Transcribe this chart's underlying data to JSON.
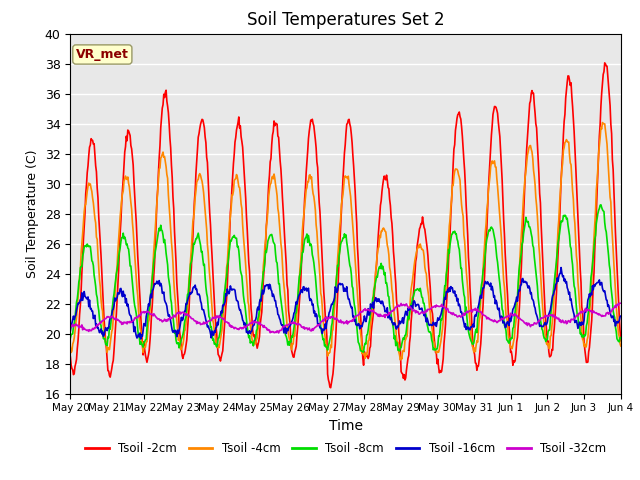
{
  "title": "Soil Temperatures Set 2",
  "xlabel": "Time",
  "ylabel": "Soil Temperature (C)",
  "ylim": [
    16,
    40
  ],
  "yticks": [
    16,
    18,
    20,
    22,
    24,
    26,
    28,
    30,
    32,
    34,
    36,
    38,
    40
  ],
  "bg_color": "#e8e8e8",
  "watermark_text": "VR_met",
  "watermark_fg": "#8b0000",
  "watermark_bg": "#ffffcc",
  "num_days": 15,
  "xtick_labels": [
    "May 20",
    "May 21",
    "May 22",
    "May 23",
    "May 24",
    "May 25",
    "May 26",
    "May 27",
    "May 28",
    "May 29",
    "May 30",
    "May 31",
    "Jun 1",
    "Jun 2",
    "Jun 3",
    "Jun 4"
  ],
  "series_colors": [
    "#ff0000",
    "#ff8800",
    "#00dd00",
    "#0000cc",
    "#cc00cc"
  ],
  "series_labels": [
    "Tsoil -2cm",
    "Tsoil -4cm",
    "Tsoil -8cm",
    "Tsoil -16cm",
    "Tsoil -32cm"
  ],
  "line_width": 1.2,
  "peak_2cm": [
    33.0,
    33.5,
    36.0,
    34.3,
    34.1,
    34.1,
    34.2,
    34.2,
    30.5,
    27.5,
    34.8,
    35.2,
    36.0,
    37.0,
    38.0
  ],
  "trough_2cm": [
    17.3,
    17.2,
    18.3,
    18.5,
    18.3,
    19.2,
    18.5,
    16.5,
    18.3,
    17.0,
    17.5,
    17.8,
    18.0,
    18.5,
    18.2
  ],
  "peak_4cm": [
    30.0,
    30.5,
    32.0,
    30.5,
    30.5,
    30.5,
    30.5,
    30.5,
    27.0,
    26.0,
    31.0,
    31.5,
    32.5,
    33.0,
    34.0
  ],
  "trough_4cm": [
    19.0,
    18.8,
    19.0,
    19.0,
    19.0,
    19.2,
    19.0,
    18.5,
    18.5,
    18.5,
    18.8,
    19.0,
    19.0,
    19.2,
    19.0
  ],
  "peak_8cm": [
    26.0,
    26.5,
    27.0,
    26.5,
    26.5,
    26.5,
    26.5,
    26.5,
    24.5,
    23.0,
    26.8,
    27.0,
    27.5,
    28.0,
    28.5
  ],
  "trough_8cm": [
    19.5,
    19.3,
    19.2,
    19.2,
    19.2,
    19.3,
    19.2,
    18.8,
    19.0,
    19.0,
    19.3,
    19.5,
    19.5,
    19.8,
    19.5
  ],
  "peak_16cm": [
    22.5,
    22.8,
    23.5,
    23.0,
    23.0,
    23.2,
    23.0,
    23.3,
    22.3,
    22.0,
    23.0,
    23.3,
    23.5,
    24.0,
    23.5
  ],
  "trough_16cm": [
    20.0,
    19.8,
    20.0,
    20.0,
    20.2,
    20.2,
    20.3,
    20.5,
    20.5,
    20.5,
    20.3,
    20.5,
    20.5,
    20.5,
    20.8
  ],
  "mean_32cm": 20.5,
  "amp_32cm": 0.5,
  "trend_32cm": 0.07
}
